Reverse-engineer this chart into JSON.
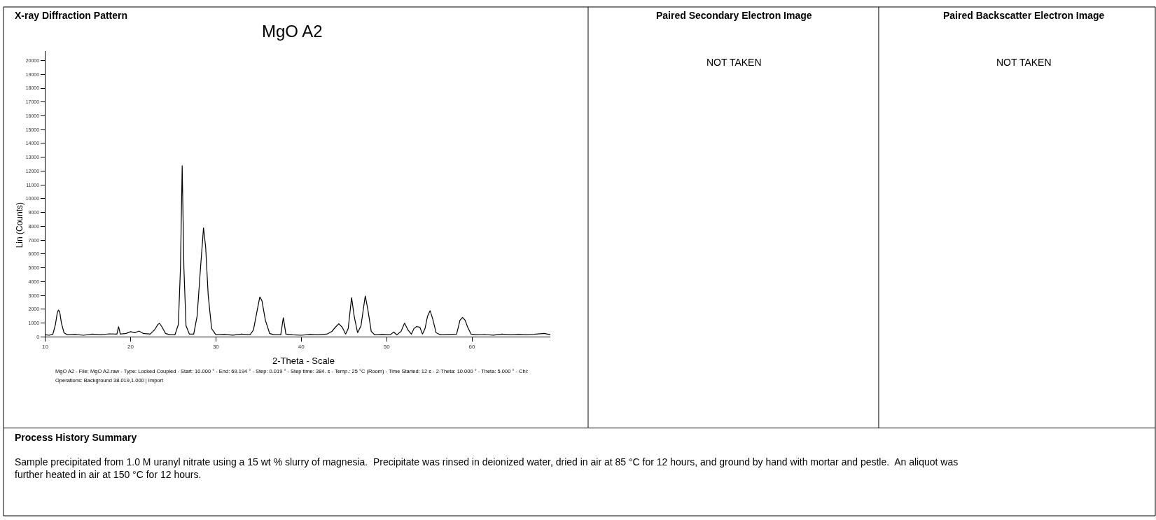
{
  "chart_data": {
    "type": "line",
    "title": "MgO A2",
    "xlabel": "2-Theta - Scale",
    "ylabel": "Lin (Counts)",
    "xlim": [
      10,
      69.194
    ],
    "xticks": [
      10,
      20,
      30,
      40,
      50,
      60
    ],
    "ylim": [
      0,
      20700
    ],
    "yticks": [
      0,
      1000,
      2000,
      3000,
      4000,
      5000,
      6000,
      7000,
      8000,
      9000,
      10000,
      11000,
      12000,
      13000,
      14000,
      15000,
      16000,
      17000,
      18000,
      19000,
      20000
    ],
    "series": [
      {
        "color": "#000000",
        "x": [
          10.0,
          10.5,
          10.9,
          11.2,
          11.4,
          11.55,
          11.7,
          11.9,
          12.2,
          12.6,
          13.5,
          14.5,
          15.5,
          16.5,
          17.5,
          18.4,
          18.6,
          18.8,
          19.5,
          20.0,
          20.5,
          21.0,
          21.5,
          22.3,
          22.8,
          23.2,
          23.4,
          23.7,
          24.1,
          24.6,
          25.2,
          25.6,
          25.85,
          26.05,
          26.25,
          26.5,
          26.9,
          27.4,
          27.8,
          28.2,
          28.55,
          28.8,
          29.1,
          29.5,
          30.0,
          31.0,
          32.0,
          33.0,
          34.0,
          34.4,
          34.8,
          35.15,
          35.4,
          35.8,
          36.3,
          36.8,
          37.6,
          37.9,
          38.2,
          39.0,
          40.0,
          41.0,
          42.0,
          43.0,
          43.6,
          44.0,
          44.4,
          44.8,
          45.2,
          45.5,
          45.9,
          46.2,
          46.6,
          47.0,
          47.5,
          47.8,
          48.2,
          48.6,
          49.5,
          50.4,
          50.85,
          51.2,
          51.7,
          52.1,
          52.5,
          52.9,
          53.2,
          53.5,
          53.9,
          54.2,
          54.5,
          54.8,
          55.1,
          55.4,
          55.8,
          56.3,
          57.3,
          58.2,
          58.6,
          58.9,
          59.2,
          59.5,
          59.9,
          60.5,
          61.5,
          62.5,
          63.5,
          64.5,
          65.5,
          66.5,
          67.5,
          68.5,
          69.194
        ],
        "values": [
          150,
          120,
          200,
          900,
          1700,
          1950,
          1800,
          1000,
          300,
          150,
          180,
          120,
          200,
          150,
          220,
          200,
          750,
          200,
          250,
          380,
          300,
          420,
          250,
          200,
          500,
          900,
          980,
          700,
          250,
          150,
          150,
          900,
          5000,
          12400,
          5000,
          800,
          200,
          200,
          1500,
          5000,
          7900,
          6500,
          3000,
          600,
          150,
          180,
          130,
          200,
          150,
          500,
          1800,
          2900,
          2600,
          1200,
          250,
          150,
          150,
          1400,
          200,
          150,
          120,
          180,
          150,
          200,
          400,
          700,
          950,
          700,
          200,
          600,
          2850,
          1500,
          300,
          800,
          2970,
          2000,
          400,
          150,
          180,
          150,
          350,
          150,
          400,
          1000,
          500,
          200,
          600,
          750,
          700,
          200,
          600,
          1500,
          1900,
          1300,
          300,
          150,
          180,
          200,
          1200,
          1400,
          1200,
          700,
          200,
          150,
          170,
          130,
          200,
          150,
          180,
          150,
          200,
          250,
          150
        ]
      }
    ],
    "annotations": [
      "X-ray Diffraction Pattern",
      "MgO A2 - File: MgO A2.raw - Type: Locked Coupled - Start: 10.000 ° - End: 69.194 ° - Step: 0.019 ° - Step time: 384. s - Temp.: 25 °C (Room) - Time Started: 12 s - 2-Theta: 10.000 ° - Theta: 5.000 ° - Chi:",
      "Operations: Background 38.019,1.000 | Import",
      "Paired Secondary Electron Image",
      "NOT TAKEN",
      "Paired Backscatter Electron Image",
      "NOT TAKEN",
      "Process History Summary",
      "Sample precipitated from 1.0 M uranyl nitrate using a 15 wt % slurry of magnesia.  Precipitate was rinsed in deionized water, dried in air at 85 °C for 12 hours, and ground by hand with mortar and pestle.  An aliquot was further heated in air at 150 °C for 12 hours."
    ]
  }
}
